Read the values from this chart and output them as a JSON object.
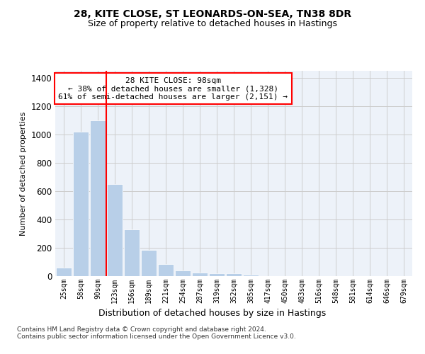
{
  "title1": "28, KITE CLOSE, ST LEONARDS-ON-SEA, TN38 8DR",
  "title2": "Size of property relative to detached houses in Hastings",
  "xlabel": "Distribution of detached houses by size in Hastings",
  "ylabel": "Number of detached properties",
  "categories": [
    "25sqm",
    "58sqm",
    "90sqm",
    "123sqm",
    "156sqm",
    "189sqm",
    "221sqm",
    "254sqm",
    "287sqm",
    "319sqm",
    "352sqm",
    "385sqm",
    "417sqm",
    "450sqm",
    "483sqm",
    "516sqm",
    "548sqm",
    "581sqm",
    "614sqm",
    "646sqm",
    "679sqm"
  ],
  "values": [
    60,
    1020,
    1100,
    650,
    330,
    185,
    85,
    40,
    25,
    20,
    18,
    10,
    0,
    0,
    0,
    0,
    0,
    0,
    0,
    0,
    0
  ],
  "bar_color": "#b8cfe8",
  "bar_edge_color": "#b8cfe8",
  "vline_x": 2.5,
  "vline_color": "red",
  "annotation_text": "28 KITE CLOSE: 98sqm\n← 38% of detached houses are smaller (1,328)\n61% of semi-detached houses are larger (2,151) →",
  "annotation_box_color": "white",
  "annotation_box_edge_color": "red",
  "ylim": [
    0,
    1450
  ],
  "yticks": [
    0,
    200,
    400,
    600,
    800,
    1000,
    1200,
    1400
  ],
  "grid_color": "#cccccc",
  "bg_color": "#edf2f9",
  "footnote": "Contains HM Land Registry data © Crown copyright and database right 2024.\nContains public sector information licensed under the Open Government Licence v3.0."
}
